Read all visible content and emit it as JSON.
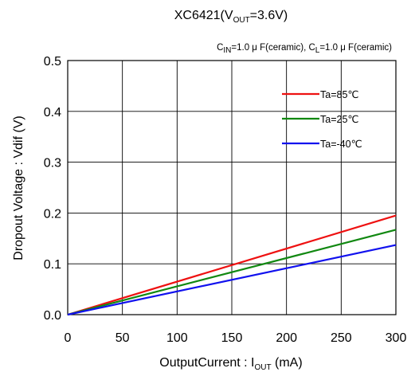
{
  "chart_data": {
    "type": "line",
    "title": {
      "main": "XC6421(V",
      "sub": "OUT",
      "tail": "=3.6V)"
    },
    "conditions": {
      "cin_main": "C",
      "cin_sub": "IN",
      "cin_tail": "=1.0 μ F(ceramic), C",
      "cl_sub": "L",
      "cl_tail": "=1.0 μ F(ceramic)"
    },
    "xlabel": {
      "main": "OutputCurrent : I",
      "sub": "OUT",
      "tail": " (mA)"
    },
    "ylabel": "Dropout Voltage : Vdif (V)",
    "xlim": [
      0,
      300
    ],
    "ylim": [
      0,
      0.5
    ],
    "x_ticks": [
      0,
      50,
      100,
      150,
      200,
      250,
      300
    ],
    "x_tick_labels": [
      "0",
      "50",
      "100",
      "150",
      "200",
      "250",
      "300"
    ],
    "y_ticks": [
      0,
      0.1,
      0.2,
      0.3,
      0.4,
      0.5
    ],
    "y_tick_labels": [
      "0.0",
      "0.1",
      "0.2",
      "0.3",
      "0.4",
      "0.5"
    ],
    "grid": true,
    "legend_position": "top-right",
    "series": [
      {
        "name": "Ta=85℃",
        "color": "#ee1111",
        "x": [
          0,
          300
        ],
        "y": [
          0,
          0.195
        ]
      },
      {
        "name": "Ta=25℃",
        "color": "#118811",
        "x": [
          0,
          300
        ],
        "y": [
          0,
          0.167
        ]
      },
      {
        "name": "Ta=-40℃",
        "color": "#1111ee",
        "x": [
          0,
          300
        ],
        "y": [
          0,
          0.137
        ]
      }
    ]
  }
}
